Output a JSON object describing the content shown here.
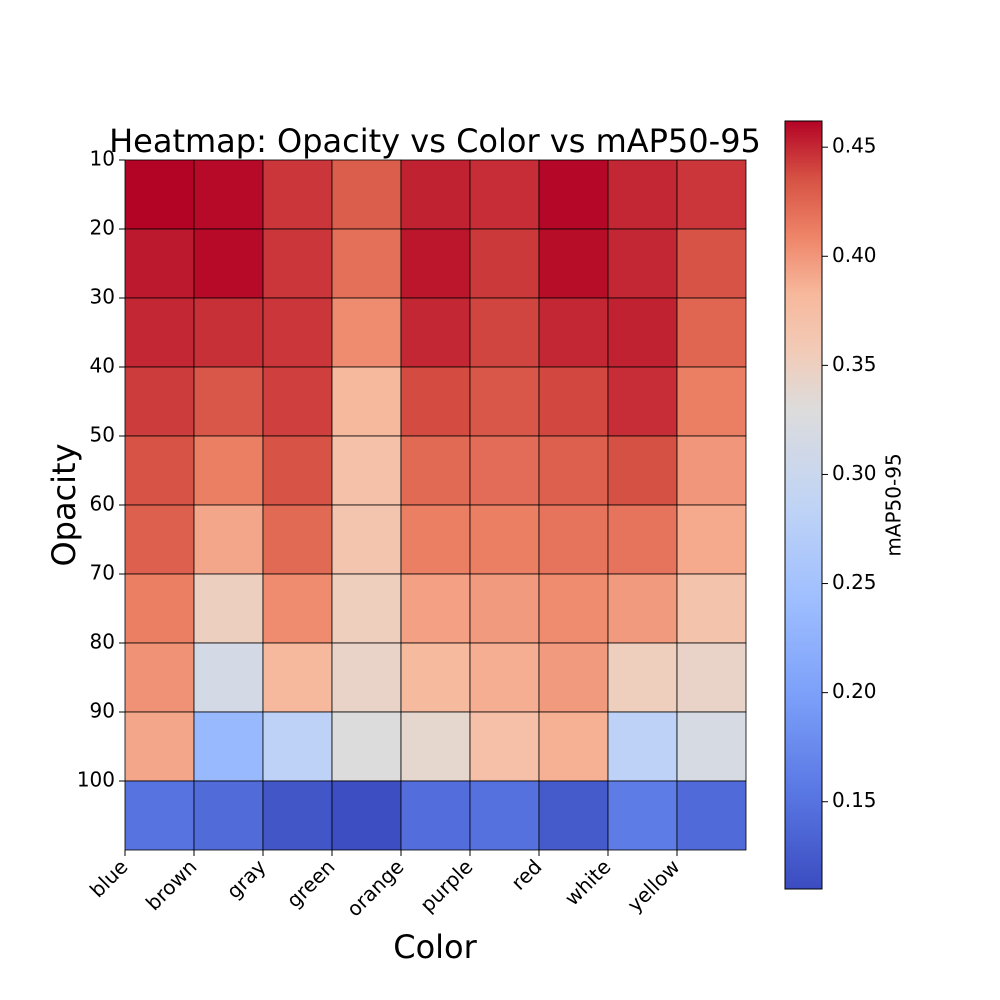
{
  "chart_data": {
    "type": "heatmap",
    "title": "Heatmap: Opacity vs Color vs mAP50-95",
    "xlabel": "Color",
    "ylabel": "Opacity",
    "x_categories": [
      "blue",
      "brown",
      "gray",
      "green",
      "orange",
      "purple",
      "red",
      "white",
      "yellow"
    ],
    "y_categories": [
      "10",
      "20",
      "30",
      "40",
      "50",
      "60",
      "70",
      "80",
      "90",
      "100"
    ],
    "values": [
      [
        0.462,
        0.46,
        0.445,
        0.43,
        0.452,
        0.448,
        0.461,
        0.45,
        0.445
      ],
      [
        0.455,
        0.46,
        0.445,
        0.42,
        0.456,
        0.444,
        0.459,
        0.45,
        0.435
      ],
      [
        0.45,
        0.447,
        0.445,
        0.405,
        0.45,
        0.44,
        0.45,
        0.452,
        0.425
      ],
      [
        0.443,
        0.433,
        0.442,
        0.382,
        0.438,
        0.433,
        0.439,
        0.448,
        0.412
      ],
      [
        0.435,
        0.412,
        0.435,
        0.37,
        0.423,
        0.422,
        0.428,
        0.436,
        0.4
      ],
      [
        0.428,
        0.392,
        0.423,
        0.365,
        0.412,
        0.412,
        0.418,
        0.418,
        0.39
      ],
      [
        0.412,
        0.35,
        0.405,
        0.352,
        0.395,
        0.398,
        0.405,
        0.398,
        0.367
      ],
      [
        0.402,
        0.315,
        0.382,
        0.345,
        0.38,
        0.388,
        0.398,
        0.352,
        0.345
      ],
      [
        0.392,
        0.235,
        0.282,
        0.33,
        0.34,
        0.372,
        0.387,
        0.282,
        0.318
      ],
      [
        0.15,
        0.142,
        0.12,
        0.112,
        0.145,
        0.148,
        0.124,
        0.16,
        0.141
      ]
    ],
    "colorbar": {
      "label": "mAP50-95",
      "range": [
        0.11,
        0.462
      ],
      "ticks": [
        "0.15",
        "0.20",
        "0.25",
        "0.30",
        "0.35",
        "0.40",
        "0.45"
      ],
      "colormap": "coolwarm"
    },
    "grid": true
  }
}
